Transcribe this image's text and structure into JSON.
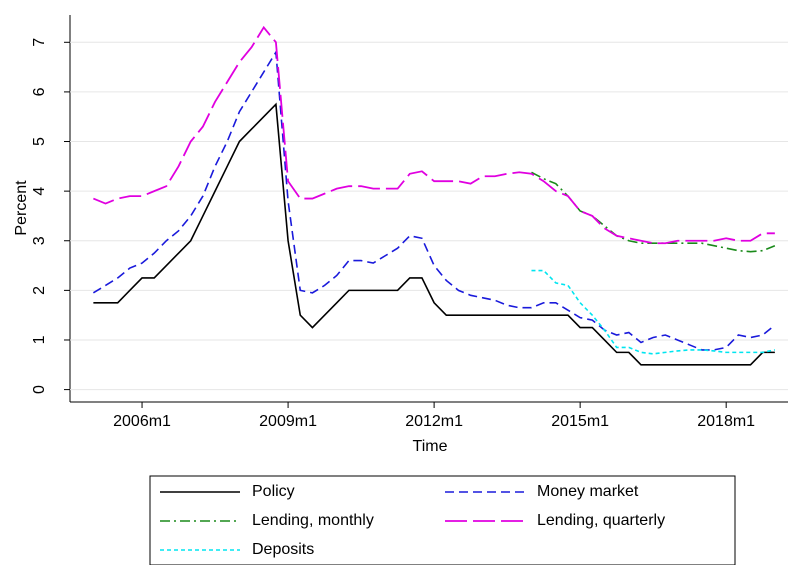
{
  "chart_data": {
    "type": "line",
    "x_label": "Time",
    "y_label": "Percent",
    "x": [
      2005.0,
      2005.25,
      2005.5,
      2005.75,
      2006.0,
      2006.25,
      2006.5,
      2006.75,
      2007.0,
      2007.25,
      2007.5,
      2007.75,
      2008.0,
      2008.25,
      2008.5,
      2008.75,
      2009.0,
      2009.25,
      2009.5,
      2009.75,
      2010.0,
      2010.25,
      2010.5,
      2010.75,
      2011.0,
      2011.25,
      2011.5,
      2011.75,
      2012.0,
      2012.25,
      2012.5,
      2012.75,
      2013.0,
      2013.25,
      2013.5,
      2013.75,
      2014.0,
      2014.25,
      2014.5,
      2014.75,
      2015.0,
      2015.25,
      2015.5,
      2015.75,
      2016.0,
      2016.25,
      2016.5,
      2016.75,
      2017.0,
      2017.25,
      2017.5,
      2017.75,
      2018.0,
      2018.25,
      2018.5,
      2018.75,
      2019.0
    ],
    "xlim": [
      2004.52,
      2019.27
    ],
    "xticks": [
      {
        "value": 2006,
        "label": "2006m1"
      },
      {
        "value": 2009,
        "label": "2009m1"
      },
      {
        "value": 2012,
        "label": "2012m1"
      },
      {
        "value": 2015,
        "label": "2015m1"
      },
      {
        "value": 2018,
        "label": "2018m1"
      }
    ],
    "ylim": [
      -0.25,
      7.55
    ],
    "yticks": [
      0,
      1,
      2,
      3,
      4,
      5,
      6,
      7
    ],
    "grid": true,
    "series": [
      {
        "name": "Policy",
        "color": "#000000",
        "values": [
          1.75,
          1.75,
          1.75,
          2.0,
          2.25,
          2.25,
          2.5,
          2.75,
          3.0,
          3.5,
          4.0,
          4.5,
          5.0,
          5.25,
          5.5,
          5.75,
          3.0,
          1.5,
          1.25,
          1.5,
          1.75,
          2.0,
          2.0,
          2.0,
          2.0,
          2.0,
          2.25,
          2.25,
          1.75,
          1.5,
          1.5,
          1.5,
          1.5,
          1.5,
          1.5,
          1.5,
          1.5,
          1.5,
          1.5,
          1.5,
          1.25,
          1.25,
          1.0,
          0.75,
          0.75,
          0.5,
          0.5,
          0.5,
          0.5,
          0.5,
          0.5,
          0.5,
          0.5,
          0.5,
          0.5,
          0.75,
          0.75
        ]
      },
      {
        "name": "Money market",
        "color": "#1a1adb",
        "values": [
          1.95,
          2.1,
          2.25,
          2.45,
          2.55,
          2.75,
          3.0,
          3.2,
          3.5,
          3.9,
          4.5,
          5.0,
          5.6,
          6.0,
          6.4,
          6.8,
          3.8,
          2.0,
          1.95,
          2.1,
          2.3,
          2.6,
          2.6,
          2.55,
          2.7,
          2.85,
          3.1,
          3.05,
          2.5,
          2.2,
          2.0,
          1.9,
          1.85,
          1.8,
          1.7,
          1.65,
          1.65,
          1.75,
          1.75,
          1.6,
          1.45,
          1.4,
          1.2,
          1.1,
          1.15,
          0.95,
          1.05,
          1.1,
          1.0,
          0.9,
          0.8,
          0.8,
          0.85,
          1.1,
          1.05,
          1.1,
          1.3
        ]
      },
      {
        "name": "Lending, monthly",
        "color": "#1a8a1a",
        "values": [
          null,
          null,
          null,
          null,
          null,
          null,
          null,
          null,
          null,
          null,
          null,
          null,
          null,
          null,
          null,
          null,
          null,
          null,
          null,
          null,
          null,
          null,
          null,
          null,
          null,
          null,
          null,
          null,
          null,
          null,
          null,
          null,
          null,
          null,
          null,
          null,
          4.38,
          4.25,
          4.15,
          3.9,
          3.6,
          3.5,
          3.3,
          3.1,
          3.0,
          2.95,
          2.95,
          2.95,
          2.95,
          2.95,
          2.95,
          2.9,
          2.85,
          2.8,
          2.78,
          2.8,
          2.9
        ]
      },
      {
        "name": "Lending, quarterly",
        "color": "#e000e0",
        "values": [
          3.85,
          3.75,
          3.85,
          3.9,
          3.9,
          4.0,
          4.1,
          4.5,
          5.0,
          5.3,
          5.8,
          6.2,
          6.6,
          6.9,
          7.3,
          7.0,
          4.2,
          3.85,
          3.85,
          3.95,
          4.05,
          4.1,
          4.1,
          4.05,
          4.05,
          4.05,
          4.35,
          4.4,
          4.2,
          4.2,
          4.2,
          4.15,
          4.3,
          4.3,
          4.35,
          4.38,
          4.35,
          4.2,
          4.0,
          3.9,
          3.6,
          3.5,
          3.25,
          3.1,
          3.05,
          3.0,
          2.95,
          2.95,
          3.0,
          3.0,
          3.0,
          3.0,
          3.05,
          3.0,
          3.0,
          3.15,
          3.15
        ]
      },
      {
        "name": "Deposits",
        "color": "#00e5f0",
        "values": [
          null,
          null,
          null,
          null,
          null,
          null,
          null,
          null,
          null,
          null,
          null,
          null,
          null,
          null,
          null,
          null,
          null,
          null,
          null,
          null,
          null,
          null,
          null,
          null,
          null,
          null,
          null,
          null,
          null,
          null,
          null,
          null,
          null,
          null,
          null,
          null,
          2.4,
          2.4,
          2.15,
          2.1,
          1.75,
          1.5,
          1.2,
          0.85,
          0.85,
          0.75,
          0.72,
          0.75,
          0.78,
          0.8,
          0.8,
          0.78,
          0.75,
          0.75,
          0.75,
          0.75,
          0.8
        ]
      }
    ]
  }
}
